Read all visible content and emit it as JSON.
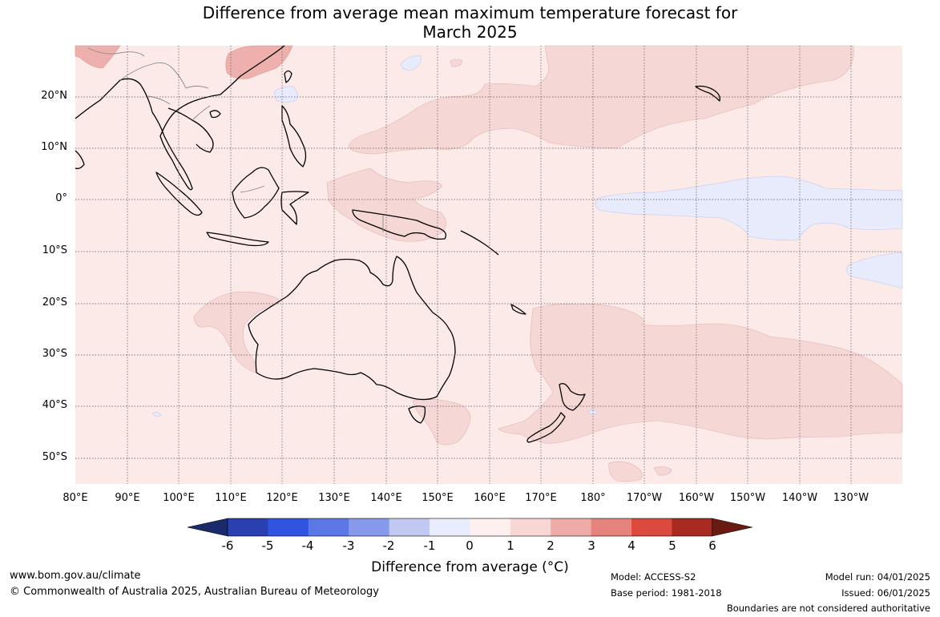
{
  "title_line1": "Difference from average mean maximum temperature forecast for",
  "title_line2": "March 2025",
  "map": {
    "lat_labels": [
      "20°N",
      "10°N",
      "0°",
      "10°S",
      "20°S",
      "30°S",
      "40°S",
      "50°S"
    ],
    "lon_labels": [
      "80°E",
      "90°E",
      "100°E",
      "110°E",
      "120°E",
      "130°E",
      "140°E",
      "150°E",
      "160°E",
      "170°E",
      "180°",
      "170°W",
      "160°W",
      "150°W",
      "140°W",
      "130°W"
    ],
    "background_color": "#fbeae8",
    "gridlines": "dotted"
  },
  "colorbar": {
    "title": "Difference from average (°C)",
    "tick_labels": [
      "-6",
      "-5",
      "-4",
      "-3",
      "-2",
      "-1",
      "0",
      "1",
      "2",
      "3",
      "4",
      "5",
      "6"
    ],
    "colors": [
      "#1b2a6b",
      "#2a3fb0",
      "#2f55e0",
      "#5c78e6",
      "#8799ea",
      "#c1c9f3",
      "#e9ecfc",
      "#fdf0ee",
      "#f7d6d4",
      "#eeaca8",
      "#e5837c",
      "#dc4a3e",
      "#a8291f",
      "#6b1a12"
    ]
  },
  "footer": {
    "website": "www.bom.gov.au/climate",
    "copyright": "© Commonwealth of Australia 2025, Australian Bureau of Meteorology",
    "model": "Model: ACCESS-S2",
    "base_period": "Base period: 1981-2018",
    "model_run": "Model run: 04/01/2025",
    "issued": "Issued: 06/01/2025",
    "disclaimer": "Boundaries are not considered authoritative"
  }
}
